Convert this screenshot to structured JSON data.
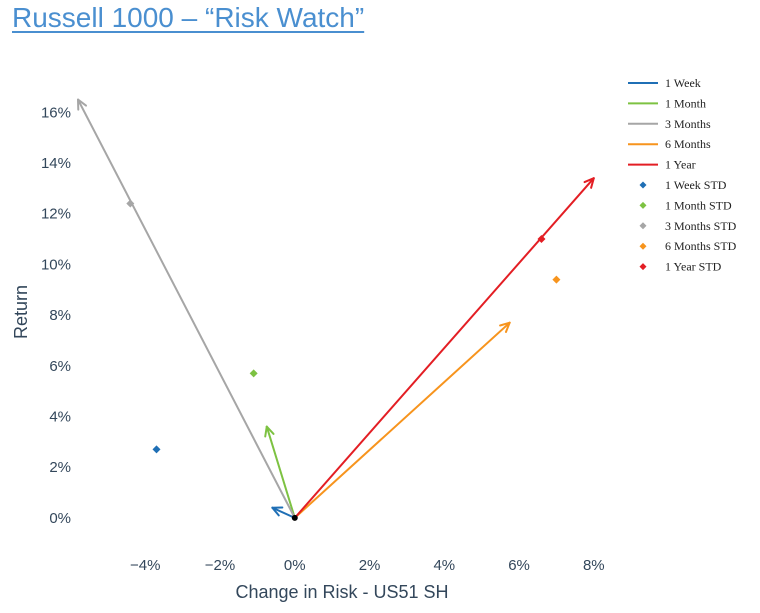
{
  "header": {
    "title": "Russell 1000 – “Risk Watch”"
  },
  "chart_data": {
    "type": "scatter",
    "xlabel": "Change in Risk - US51 SH",
    "ylabel": "Return",
    "xlim": [
      -0.058,
      0.083
    ],
    "ylim": [
      -0.004,
      0.168
    ],
    "x_ticks": [
      {
        "value": -0.04,
        "label": "−4%"
      },
      {
        "value": -0.02,
        "label": "−2%"
      },
      {
        "value": 0.0,
        "label": "0%"
      },
      {
        "value": 0.02,
        "label": "2%"
      },
      {
        "value": 0.04,
        "label": "4%"
      },
      {
        "value": 0.06,
        "label": "6%"
      },
      {
        "value": 0.08,
        "label": "8%"
      }
    ],
    "y_ticks": [
      {
        "value": 0.0,
        "label": "0%"
      },
      {
        "value": 0.02,
        "label": "2%"
      },
      {
        "value": 0.04,
        "label": "4%"
      },
      {
        "value": 0.06,
        "label": "6%"
      },
      {
        "value": 0.08,
        "label": "8%"
      },
      {
        "value": 0.1,
        "label": "10%"
      },
      {
        "value": 0.12,
        "label": "12%"
      },
      {
        "value": 0.14,
        "label": "14%"
      },
      {
        "value": 0.16,
        "label": "16%"
      }
    ],
    "grid": false,
    "legend_position": "top-right",
    "origin": {
      "x": 0.0,
      "y": 0.0
    },
    "arrows": [
      {
        "name": "1 Week",
        "color": "#1f6fb5",
        "x": -0.006,
        "y": 0.004
      },
      {
        "name": "1 Month",
        "color": "#7dc242",
        "x": -0.0075,
        "y": 0.036
      },
      {
        "name": "3 Months",
        "color": "#a6a6a6",
        "x": -0.058,
        "y": 0.165
      },
      {
        "name": "6 Months",
        "color": "#f7941d",
        "x": 0.0575,
        "y": 0.077
      },
      {
        "name": "1 Year",
        "color": "#e31e24",
        "x": 0.08,
        "y": 0.134
      }
    ],
    "std_points": [
      {
        "name": "1 Week STD",
        "color": "#1f6fb5",
        "x": -0.037,
        "y": 0.027
      },
      {
        "name": "1 Month STD",
        "color": "#7dc242",
        "x": -0.011,
        "y": 0.057
      },
      {
        "name": "3 Months STD",
        "color": "#a6a6a6",
        "x": -0.044,
        "y": 0.124
      },
      {
        "name": "6 Months STD",
        "color": "#f7941d",
        "x": 0.07,
        "y": 0.094
      },
      {
        "name": "1 Year STD",
        "color": "#e31e24",
        "x": 0.066,
        "y": 0.11
      }
    ]
  }
}
